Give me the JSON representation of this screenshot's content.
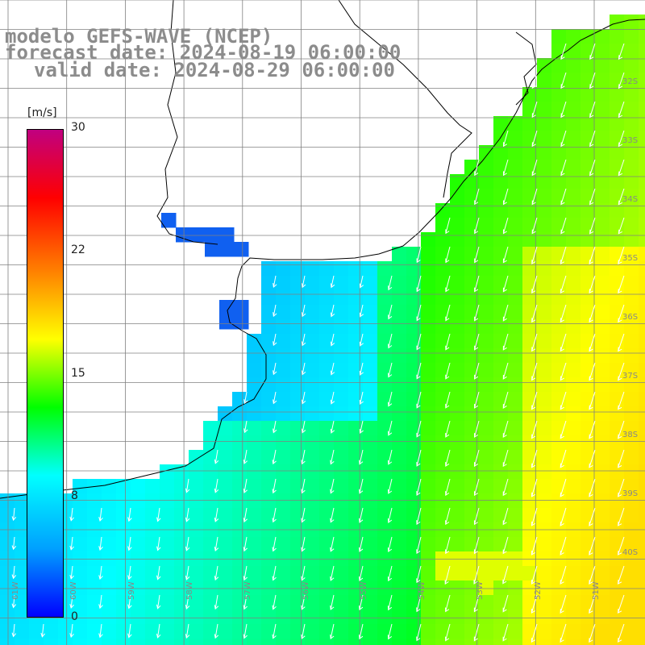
{
  "header": {
    "line1": "modelo GEFS-WAVE (NCEP)",
    "line2": "forecast date: 2024-08-19 06:00:00",
    "line3": "valid date: 2024-08-29 06:00:00"
  },
  "colorbar": {
    "unit": "[m/s]",
    "ticks": [
      "30",
      "22",
      "15",
      "8",
      "0"
    ],
    "colors": [
      "#0000ff",
      "#00a0ff",
      "#00ffff",
      "#00ff00",
      "#ffff00",
      "#ff8000",
      "#ff0000",
      "#c00080"
    ]
  },
  "axes": {
    "lon_labels": [
      "61W",
      "60W",
      "59W",
      "58W",
      "57W",
      "56W",
      "55W",
      "54W",
      "53W",
      "52W",
      "51W"
    ],
    "lat_labels": [
      "32S",
      "33S",
      "34S",
      "35S",
      "36S",
      "37S",
      "38S",
      "39S",
      "40S"
    ]
  },
  "colors": {
    "land": "#ffffff",
    "coast": "#000000",
    "grid": "#808080",
    "arrow": "#ffffff"
  }
}
